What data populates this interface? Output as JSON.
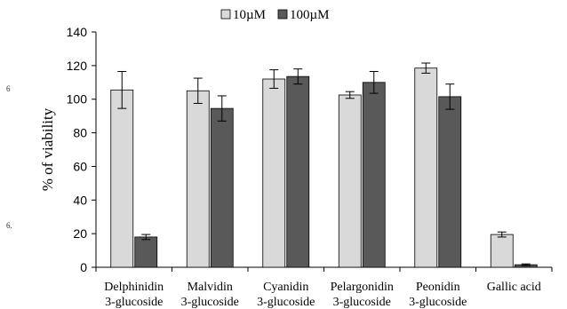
{
  "chart_data": {
    "type": "bar",
    "categories": [
      [
        "Delphinidin",
        "3-glucoside"
      ],
      [
        "Malvidin",
        "3-glucoside"
      ],
      [
        "Cyanidin",
        "3-glucoside"
      ],
      [
        "Pelargonidin",
        "3-glucoside"
      ],
      [
        "Peonidin",
        "3-glucoside"
      ],
      [
        "Gallic acid"
      ]
    ],
    "series": [
      {
        "name": "10µM",
        "color": "#d9d9d9",
        "values": [
          105.5,
          105,
          112,
          102.5,
          118.5,
          19.5
        ],
        "errors": [
          11,
          7.5,
          5.5,
          2,
          3,
          1.5
        ]
      },
      {
        "name": "100µM",
        "color": "#595959",
        "values": [
          18,
          94.5,
          113.5,
          110,
          101.5,
          1.5
        ],
        "errors": [
          1.5,
          7.5,
          4.5,
          6.5,
          7.5,
          0.5
        ]
      }
    ],
    "ylabel": "% of viability",
    "ylim": [
      0,
      140
    ],
    "yticks": [
      0,
      20,
      40,
      60,
      80,
      100,
      120,
      140
    ],
    "grid": false,
    "legend": "top"
  },
  "stray_marks": [
    "6",
    "6."
  ]
}
